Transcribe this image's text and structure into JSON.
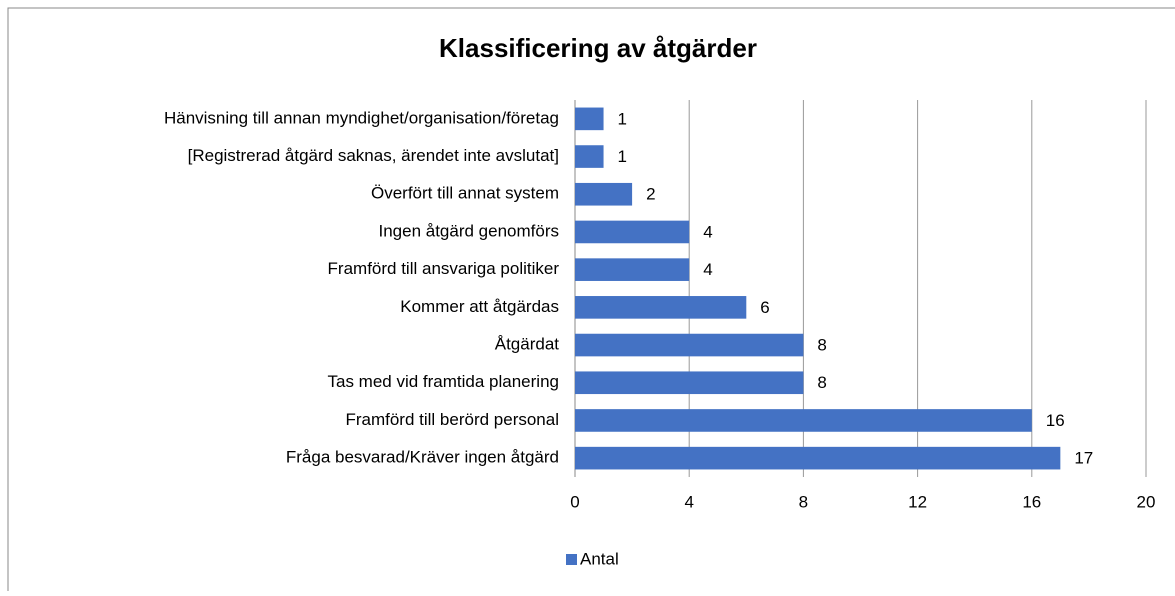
{
  "chart_data": {
    "type": "barh",
    "title": "Klassificering av åtgärder",
    "categories": [
      "Hänvisning till annan myndighet/organisation/företag",
      "[Registrerad åtgärd saknas, ärendet inte avslutat]",
      "Överfört till annat system",
      "Ingen åtgärd genomförs",
      "Framförd till ansvariga politiker",
      "Kommer att åtgärdas",
      "Åtgärdat",
      "Tas med vid framtida planering",
      "Framförd till berörd personal",
      "Fråga besvarad/Kräver ingen åtgärd"
    ],
    "series": [
      {
        "name": "Antal",
        "color": "#4472c4",
        "values": [
          1,
          1,
          2,
          4,
          4,
          6,
          8,
          8,
          16,
          17
        ]
      }
    ],
    "xlim": [
      0,
      20
    ],
    "xticks": [
      0,
      4,
      8,
      12,
      16,
      20
    ],
    "grid": true,
    "legend": "bottom"
  }
}
